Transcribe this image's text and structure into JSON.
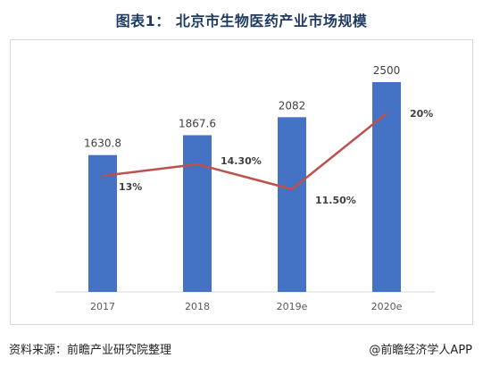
{
  "title": "图表1： 北京市生物医药产业市场规模",
  "source": "资料来源：前瞻产业研究院整理",
  "brand": "@前瞻经济学人APP",
  "colors": {
    "bar": "#4472c4",
    "line": "#c0504d",
    "title": "#1f3b5f"
  },
  "chart_data": {
    "type": "bar",
    "title": "",
    "xlabel": "",
    "ylabel": "",
    "categories": [
      "2017",
      "2018",
      "2019e",
      "2020e"
    ],
    "series": [
      {
        "type": "bar",
        "values": [
          1630.8,
          1867.6,
          2082,
          2500
        ],
        "labels": [
          "1630.8",
          "1867.6",
          "2082",
          "2500"
        ]
      },
      {
        "type": "line",
        "values": [
          13,
          14.3,
          11.5,
          20
        ],
        "labels": [
          "13%",
          "14.30%",
          "11.50%",
          "20%"
        ]
      }
    ],
    "ylim": [
      0,
      3000
    ],
    "y2lim": [
      0,
      25
    ],
    "grid": false,
    "legend": "none"
  }
}
